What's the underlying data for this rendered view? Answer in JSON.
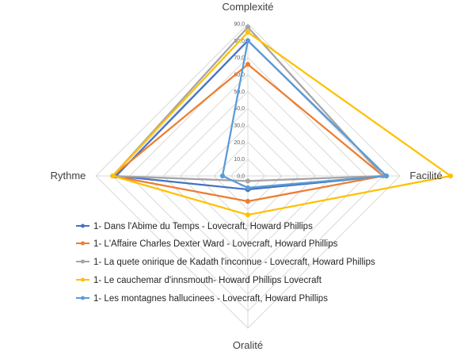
{
  "chart_data": {
    "type": "radar",
    "axes": [
      "Complexité",
      "Facilité",
      "Oralité",
      "Rythme"
    ],
    "ticks": [
      "0,0",
      "10,0",
      "20,0",
      "30,0",
      "40,0",
      "50,0",
      "60,0",
      "70,0",
      "80,0",
      "90,0"
    ],
    "rlim": [
      0,
      90
    ],
    "grid": true,
    "legend_position": "bottom",
    "series": [
      {
        "name": "1- Dans l'Abime du Temps - Lovecraft, Howard Phillips",
        "color": "#4472C4",
        "values": [
          80,
          82,
          8,
          78
        ]
      },
      {
        "name": "1- L'Affaire Charles Dexter Ward - Lovecraft, Howard Phillips",
        "color": "#ED7D31",
        "values": [
          66,
          80,
          15,
          80
        ]
      },
      {
        "name": "1- La quete onirique de Kadath l'inconnue - Lovecraft, Howard Phillips",
        "color": "#A5A5A5",
        "values": [
          88,
          80,
          3,
          80
        ]
      },
      {
        "name": "1- Le cauchemar d'innsmouth- Howard Phillips Lovecraft",
        "color": "#FFC000",
        "values": [
          85,
          120,
          23,
          80
        ]
      },
      {
        "name": "1- Les montagnes hallucinees - Lovecraft, Howard Phillips",
        "color": "#5B9BD5",
        "values": [
          80,
          82,
          7,
          15
        ]
      }
    ]
  }
}
